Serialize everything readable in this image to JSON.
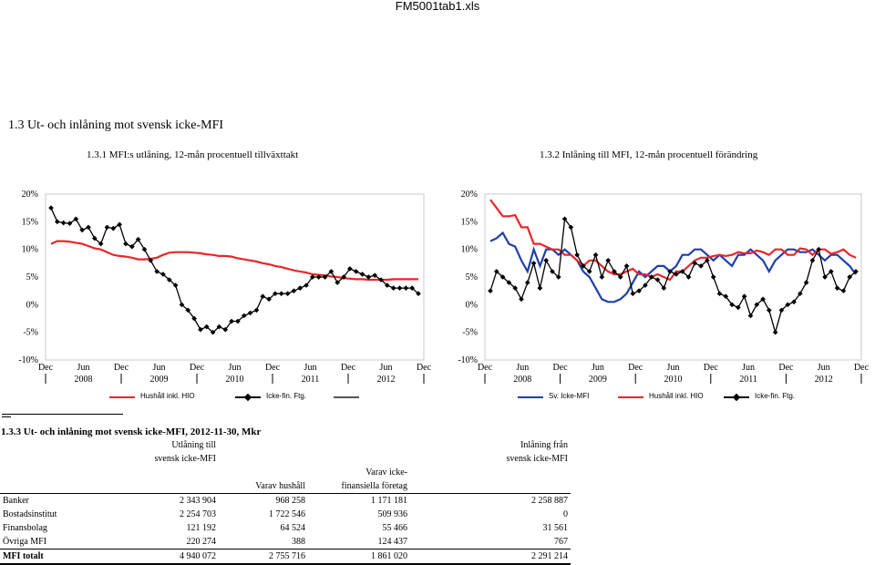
{
  "window_title": "FM5001tab1.xls",
  "section_title": "1.3  Ut- och inlåning mot svensk icke-MFI",
  "chart1": {
    "subtitle": "1.3.1 MFI:s utlåning, 12-mån procentuell tillväxttakt",
    "y_ticks": [
      "20%",
      "15%",
      "10%",
      "5%",
      "0%",
      "-5%",
      "-10%"
    ],
    "x_ticks_top": [
      "Dec",
      "Jun",
      "Dec",
      "Jun",
      "Dec",
      "Jun",
      "Dec",
      "Jun",
      "Dec",
      "Jun",
      "Dec"
    ],
    "x_ticks_year": [
      "2008",
      "2009",
      "2010",
      "2011",
      "2012"
    ],
    "legend": [
      {
        "label": "Hushåll inkl. HIO",
        "color": "#e8262a"
      },
      {
        "label": "Icke-fin. Ftg.",
        "color": "#000000"
      }
    ]
  },
  "chart2": {
    "subtitle": "1.3.2 Inlåning till MFI, 12-mån procentuell förändring",
    "y_ticks": [
      "20%",
      "15%",
      "10%",
      "5%",
      "0%",
      "-5%",
      "-10%"
    ],
    "x_ticks_top": [
      "Dec",
      "Jun",
      "Dec",
      "Jun",
      "Dec",
      "Jun",
      "Dec",
      "Jun",
      "Dec",
      "Jun",
      "Dec"
    ],
    "x_ticks_year": [
      "2008",
      "2009",
      "2010",
      "2011",
      "2012"
    ],
    "legend": [
      {
        "label": "Sv. Icke-MFI",
        "color": "#1f3fa8"
      },
      {
        "label": "Hushåll inkl. HIO",
        "color": "#e8262a"
      },
      {
        "label": "Icke-fin. Ftg.",
        "color": "#000000"
      }
    ]
  },
  "chart_data": [
    {
      "type": "line",
      "title": "1.3.1 MFI:s utlåning, 12-mån procentuell tillväxttakt",
      "ylim": [
        -10,
        20
      ],
      "x_range": [
        "Dec 2007",
        "Nov 2012"
      ],
      "series": [
        {
          "name": "Hushåll inkl. HIO",
          "color": "#e8262a",
          "values": [
            11,
            11.5,
            11.5,
            11.4,
            11.2,
            11,
            10.6,
            10.2,
            10,
            9.5,
            9,
            8.8,
            8.7,
            8.5,
            8.2,
            8.2,
            8.3,
            8.5,
            9,
            9.4,
            9.5,
            9.5,
            9.5,
            9.4,
            9.3,
            9.1,
            9,
            8.8,
            8.8,
            8.7,
            8.4,
            8.2,
            8,
            7.8,
            7.5,
            7.3,
            7,
            6.8,
            6.5,
            6.2,
            6,
            5.8,
            5.5,
            5.4,
            5.3,
            5.1,
            5,
            4.8,
            4.7,
            4.6,
            4.6,
            4.5,
            4.5,
            4.5,
            4.5,
            4.6,
            4.6,
            4.6,
            4.6,
            4.6
          ]
        },
        {
          "name": "Icke-fin. Ftg.",
          "color": "#000000",
          "values": [
            17.5,
            15,
            14.8,
            14.7,
            15.5,
            13.5,
            14,
            12,
            11,
            14,
            13.8,
            14.5,
            11,
            10.5,
            11.8,
            10,
            8,
            6,
            5.5,
            4.5,
            3.5,
            0,
            -1,
            -2.5,
            -4.5,
            -4,
            -5,
            -4,
            -4.5,
            -3,
            -3,
            -2,
            -1.5,
            -1,
            1.5,
            1,
            2,
            2,
            2,
            2.5,
            3,
            3.5,
            5,
            5,
            5,
            6,
            4,
            5,
            6.5,
            6,
            5.5,
            5,
            5.3,
            4.5,
            3.5,
            3,
            3,
            3,
            3,
            2
          ]
        }
      ]
    },
    {
      "type": "line",
      "title": "1.3.2 Inlåning till MFI, 12-mån procentuell förändring",
      "ylim": [
        -10,
        20
      ],
      "x_range": [
        "Dec 2007",
        "Nov 2012"
      ],
      "series": [
        {
          "name": "Sv. Icke-MFI",
          "color": "#1f3fa8",
          "values": [
            11.5,
            12,
            13,
            11,
            10.5,
            8,
            6,
            10,
            7,
            10,
            10,
            9,
            10,
            9,
            8,
            6,
            5,
            3,
            1,
            0.5,
            0.5,
            1,
            2,
            4,
            6,
            5,
            6,
            7,
            7,
            6,
            7,
            9,
            9,
            10,
            10,
            9,
            8,
            9,
            8,
            7,
            9,
            9,
            10,
            9,
            8,
            6,
            8,
            9,
            10,
            10,
            9.5,
            9.5,
            10,
            9,
            8,
            9,
            9,
            8,
            7,
            5.5
          ]
        },
        {
          "name": "Hushåll inkl. HIO",
          "color": "#e8262a",
          "values": [
            19,
            17.5,
            16,
            16,
            16.2,
            14,
            14,
            11,
            11,
            10.5,
            10,
            10,
            9,
            9,
            8,
            7,
            8,
            8,
            7,
            6,
            5.5,
            5.5,
            6,
            6.5,
            5.5,
            5.5,
            5,
            5.5,
            5,
            4.5,
            6,
            6,
            7,
            8,
            8.5,
            8.5,
            8.8,
            9,
            8.8,
            9,
            9.5,
            9.3,
            9.3,
            9.8,
            9.5,
            9,
            10,
            10,
            9,
            9,
            10.2,
            10,
            9,
            10,
            10,
            9.2,
            9.5,
            10,
            9,
            8.5
          ]
        },
        {
          "name": "Icke-fin. Ftg.",
          "color": "#000000",
          "values": [
            2.5,
            6,
            5,
            4,
            3,
            1,
            4,
            7.5,
            3,
            8,
            6,
            5,
            15.5,
            14,
            9,
            7,
            6,
            9,
            5,
            8,
            6,
            5,
            7,
            2,
            2.5,
            3.5,
            5,
            4.5,
            3,
            6,
            5.5,
            6,
            5,
            7.5,
            7,
            8,
            5,
            2,
            1.5,
            0,
            -0.5,
            1.5,
            -2,
            0,
            1,
            -1,
            -5,
            -1,
            0,
            0.5,
            2,
            4,
            8,
            10,
            5,
            6,
            3,
            2.5,
            5,
            6
          ]
        }
      ]
    }
  ],
  "table": {
    "title": "1.3.3  Ut- och inlåning mot svensk icke-MFI, 2012-11-30, Mkr",
    "header": {
      "utlaning": "Utlåning till",
      "utlaning2": "svensk icke-MFI",
      "inlaning": "Inlåning från",
      "inlaning2": "svensk icke-MFI",
      "varav_hushall": "Varav hushåll",
      "varav_icke": "Varav icke-",
      "varav_icke2": "finansiella företag"
    },
    "rows": [
      {
        "label": "Banker",
        "c1": "2 343 904",
        "c2": "968 258",
        "c3": "1 171 181",
        "c4": "2 258 887"
      },
      {
        "label": "Bostadsinstitut",
        "c1": "2 254 703",
        "c2": "1 722 546",
        "c3": "509 936",
        "c4": "0"
      },
      {
        "label": "Finansbolag",
        "c1": "121 192",
        "c2": "64 524",
        "c3": "55 466",
        "c4": "31 561"
      },
      {
        "label": "Övriga MFI",
        "c1": "220 274",
        "c2": "388",
        "c3": "124 437",
        "c4": "767"
      },
      {
        "label": "MFI totalt",
        "c1": "4 940 072",
        "c2": "2 755 716",
        "c3": "1 861 020",
        "c4": "2 291 214"
      }
    ]
  }
}
